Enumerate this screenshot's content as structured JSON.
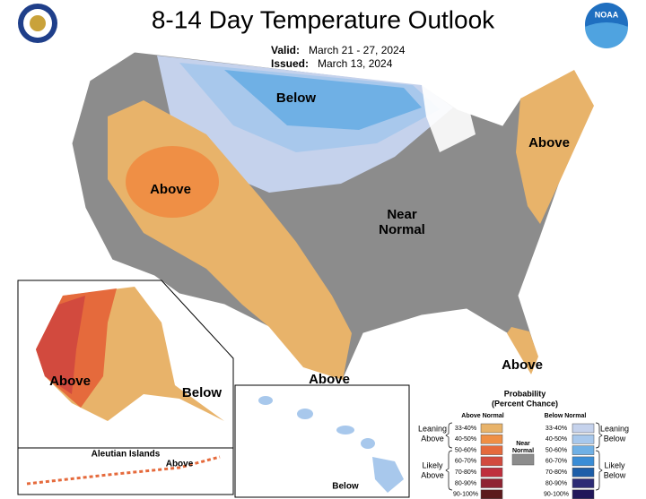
{
  "header": {
    "title": "8-14 Day Temperature Outlook",
    "valid_label": "Valid:",
    "valid": "March 21 - 27, 2024",
    "issued_label": "Issued:",
    "issued": "March 13, 2024",
    "logo_text": "NOAA"
  },
  "map": {
    "labels": [
      "Below",
      "Above",
      "Above",
      "Near",
      "Normal",
      "Above",
      "Above",
      "Above",
      "Below",
      "Aleutian Islands",
      "Above",
      "Below"
    ]
  },
  "legend": {
    "title": "Probability",
    "subtitle": "(Percent Chance)",
    "above_header": "Above Normal",
    "below_header": "Below Normal",
    "leaning_above": [
      "Leaning",
      "Above"
    ],
    "likely_above": [
      "Likely",
      "Above"
    ],
    "near_normal": [
      "Near",
      "Normal"
    ],
    "near_color": "#8c8c8c",
    "leaning_below": [
      "Leaning",
      "Below"
    ],
    "likely_below": [
      "Likely",
      "Below"
    ],
    "above": [
      {
        "label": "33-40%",
        "color": "#e8b36a"
      },
      {
        "label": "40-50%",
        "color": "#ef8f45"
      },
      {
        "label": "50-60%",
        "color": "#e56a3c"
      },
      {
        "label": "60-70%",
        "color": "#d24a3e"
      },
      {
        "label": "70-80%",
        "color": "#bf2f3d"
      },
      {
        "label": "80-90%",
        "color": "#8f2332"
      },
      {
        "label": "90-100%",
        "color": "#5b1a1c"
      }
    ],
    "below": [
      {
        "label": "33-40%",
        "color": "#c5d2ec"
      },
      {
        "label": "40-50%",
        "color": "#a8c8ec"
      },
      {
        "label": "50-60%",
        "color": "#6fb0e5"
      },
      {
        "label": "60-70%",
        "color": "#3a8dd6"
      },
      {
        "label": "70-80%",
        "color": "#1d5ea8"
      },
      {
        "label": "80-90%",
        "color": "#2c2b75"
      },
      {
        "label": "90-100%",
        "color": "#21175a"
      }
    ]
  }
}
